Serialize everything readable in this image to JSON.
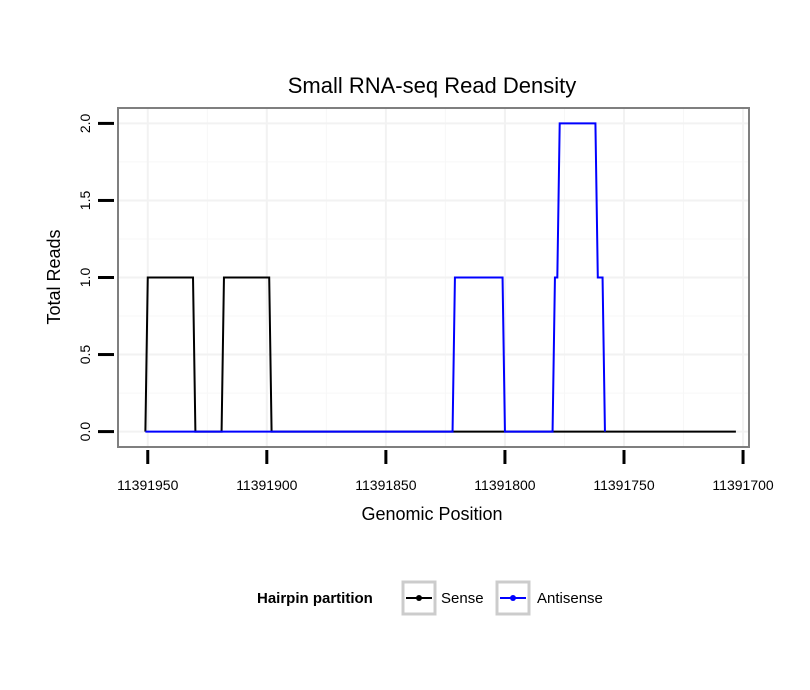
{
  "chart_data": {
    "type": "line",
    "title": "Small RNA-seq Read Density",
    "xlabel": "Genomic Position",
    "ylabel": "Total Reads",
    "x_reversed": true,
    "xlim": [
      11391962.5,
      11391697.5
    ],
    "ylim": [
      -0.1,
      2.1
    ],
    "x_ticks": [
      11391950,
      11391900,
      11391850,
      11391800,
      11391750,
      11391700
    ],
    "x_tick_labels": [
      "11391950",
      "11391900",
      "11391850",
      "11391800",
      "11391750",
      "11391700"
    ],
    "y_ticks": [
      0,
      0.5,
      1,
      1.5,
      2
    ],
    "y_tick_labels": [
      "0.0",
      "0.5",
      "1.0",
      "1.5",
      "2.0"
    ],
    "grid": true,
    "legend": {
      "title": "Hairpin partition",
      "position": "bottom"
    },
    "series": [
      {
        "name": "Sense",
        "color": "#000000",
        "points": [
          [
            11391951,
            0
          ],
          [
            11391950,
            1
          ],
          [
            11391931,
            1
          ],
          [
            11391930,
            0
          ],
          [
            11391919,
            0
          ],
          [
            11391918,
            1
          ],
          [
            11391899,
            1
          ],
          [
            11391898,
            0
          ],
          [
            11391703,
            0
          ]
        ]
      },
      {
        "name": "Antisense",
        "color": "#0000ff",
        "points": [
          [
            11391951,
            0
          ],
          [
            11391822,
            0
          ],
          [
            11391821,
            1
          ],
          [
            11391801,
            1
          ],
          [
            11391800,
            0
          ],
          [
            11391780,
            0
          ],
          [
            11391779,
            1
          ],
          [
            11391778,
            1
          ],
          [
            11391777,
            2
          ],
          [
            11391762,
            2
          ],
          [
            11391761,
            1
          ],
          [
            11391759,
            1
          ],
          [
            11391758,
            0
          ]
        ]
      }
    ]
  }
}
